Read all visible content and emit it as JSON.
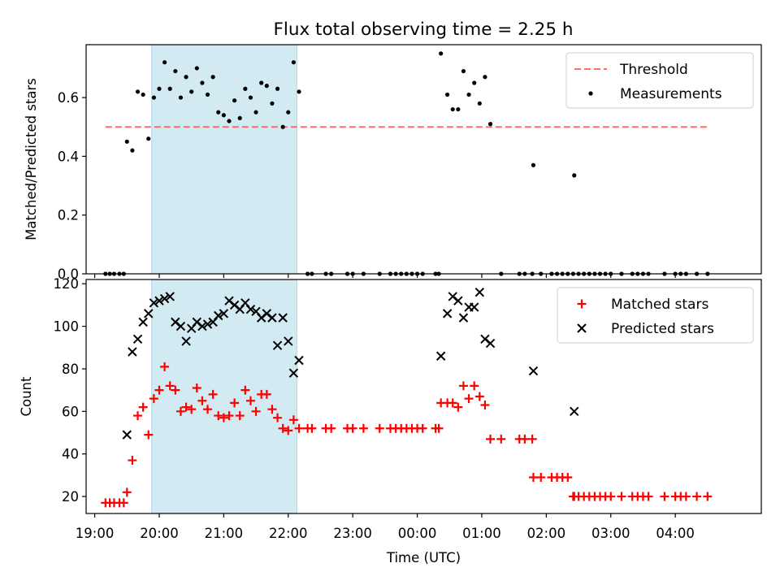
{
  "title": "Flux total observing time = 2.25 h",
  "colors": {
    "shade": "#add8e6",
    "threshold": "#ff6b6b",
    "matched": "#ff0000",
    "predicted": "#000000",
    "measurement": "#000000"
  },
  "chart_data": [
    {
      "type": "scatter",
      "ylabel": "Matched/Predicted stars",
      "ylim": [
        0,
        0.78
      ],
      "yticks": [
        0.0,
        0.2,
        0.4,
        0.6
      ],
      "ytick_labels": [
        "0.0",
        "0.2",
        "0.4",
        "0.6"
      ],
      "xlim": [
        "18:52",
        "05:20"
      ],
      "shaded_span": [
        "19:53",
        "22:08"
      ],
      "legend_position": "top-right",
      "threshold": {
        "name": "Threshold",
        "value": 0.5,
        "x_range": [
          "19:10",
          "04:30"
        ]
      },
      "series": [
        {
          "name": "Measurements",
          "points": [
            [
              "19:10",
              0
            ],
            [
              "19:14",
              0
            ],
            [
              "19:18",
              0
            ],
            [
              "19:23",
              0
            ],
            [
              "19:27",
              0.0
            ],
            [
              "19:30",
              0.45
            ],
            [
              "19:35",
              0.42
            ],
            [
              "19:40",
              0.62
            ],
            [
              "19:45",
              0.61
            ],
            [
              "19:50",
              0.46
            ],
            [
              "19:55",
              0.6
            ],
            [
              "20:00",
              0.63
            ],
            [
              "20:05",
              0.72
            ],
            [
              "20:10",
              0.63
            ],
            [
              "20:15",
              0.69
            ],
            [
              "20:20",
              0.6
            ],
            [
              "20:25",
              0.67
            ],
            [
              "20:30",
              0.62
            ],
            [
              "20:35",
              0.7
            ],
            [
              "20:40",
              0.65
            ],
            [
              "20:45",
              0.61
            ],
            [
              "20:50",
              0.67
            ],
            [
              "20:55",
              0.55
            ],
            [
              "21:00",
              0.54
            ],
            [
              "21:05",
              0.52
            ],
            [
              "21:10",
              0.59
            ],
            [
              "21:15",
              0.53
            ],
            [
              "21:20",
              0.63
            ],
            [
              "21:25",
              0.6
            ],
            [
              "21:30",
              0.55
            ],
            [
              "21:35",
              0.65
            ],
            [
              "21:40",
              0.64
            ],
            [
              "21:45",
              0.58
            ],
            [
              "21:50",
              0.63
            ],
            [
              "21:55",
              0.5
            ],
            [
              "22:00",
              0.55
            ],
            [
              "22:05",
              0.72
            ],
            [
              "22:10",
              0.62
            ],
            [
              "22:18",
              0
            ],
            [
              "22:22",
              0
            ],
            [
              "22:35",
              0
            ],
            [
              "22:40",
              0
            ],
            [
              "22:55",
              0
            ],
            [
              "23:00",
              0
            ],
            [
              "23:10",
              0
            ],
            [
              "23:25",
              0
            ],
            [
              "23:35",
              0
            ],
            [
              "23:40",
              0
            ],
            [
              "23:45",
              0
            ],
            [
              "23:50",
              0
            ],
            [
              "23:55",
              0
            ],
            [
              "00:00",
              0
            ],
            [
              "00:05",
              0
            ],
            [
              "00:17",
              0
            ],
            [
              "00:20",
              0
            ],
            [
              "00:22",
              0.75
            ],
            [
              "00:28",
              0.61
            ],
            [
              "00:33",
              0.56
            ],
            [
              "00:38",
              0.56
            ],
            [
              "00:43",
              0.69
            ],
            [
              "00:48",
              0.61
            ],
            [
              "00:53",
              0.65
            ],
            [
              "00:58",
              0.58
            ],
            [
              "01:03",
              0.67
            ],
            [
              "01:08",
              0.51
            ],
            [
              "01:18",
              0
            ],
            [
              "01:35",
              0
            ],
            [
              "01:40",
              0
            ],
            [
              "01:47",
              0
            ],
            [
              "01:48",
              0.37
            ],
            [
              "01:55",
              0
            ],
            [
              "02:05",
              0
            ],
            [
              "02:10",
              0
            ],
            [
              "02:15",
              0
            ],
            [
              "02:20",
              0
            ],
            [
              "02:25",
              0
            ],
            [
              "02:26",
              0.335
            ],
            [
              "02:30",
              0
            ],
            [
              "02:35",
              0
            ],
            [
              "02:40",
              0
            ],
            [
              "02:45",
              0
            ],
            [
              "02:50",
              0
            ],
            [
              "02:55",
              0
            ],
            [
              "03:00",
              0
            ],
            [
              "03:10",
              0
            ],
            [
              "03:20",
              0
            ],
            [
              "03:25",
              0
            ],
            [
              "03:30",
              0
            ],
            [
              "03:35",
              0
            ],
            [
              "03:50",
              0
            ],
            [
              "04:00",
              0
            ],
            [
              "04:05",
              0
            ],
            [
              "04:10",
              0
            ],
            [
              "04:20",
              0
            ],
            [
              "04:30",
              0
            ]
          ]
        }
      ]
    },
    {
      "type": "scatter",
      "xlabel": "Time (UTC)",
      "ylabel": "Count",
      "ylim": [
        12,
        122
      ],
      "yticks": [
        20,
        40,
        60,
        80,
        100,
        120
      ],
      "ytick_labels": [
        "20",
        "40",
        "60",
        "80",
        "100",
        "120"
      ],
      "xlim": [
        "18:52",
        "05:20"
      ],
      "xticks": [
        "19:00",
        "20:00",
        "21:00",
        "22:00",
        "23:00",
        "00:00",
        "01:00",
        "02:00",
        "03:00",
        "04:00"
      ],
      "shaded_span": [
        "19:53",
        "22:08"
      ],
      "legend_position": "top-right",
      "series": [
        {
          "name": "Matched stars",
          "marker": "plus",
          "points": [
            [
              "19:10",
              17
            ],
            [
              "19:14",
              17
            ],
            [
              "19:18",
              17
            ],
            [
              "19:23",
              17
            ],
            [
              "19:27",
              17
            ],
            [
              "19:30",
              22
            ],
            [
              "19:35",
              37
            ],
            [
              "19:40",
              58
            ],
            [
              "19:45",
              62
            ],
            [
              "19:50",
              49
            ],
            [
              "19:55",
              66
            ],
            [
              "20:00",
              70
            ],
            [
              "20:05",
              81
            ],
            [
              "20:10",
              72
            ],
            [
              "20:15",
              70
            ],
            [
              "20:20",
              60
            ],
            [
              "20:25",
              62
            ],
            [
              "20:30",
              61
            ],
            [
              "20:35",
              71
            ],
            [
              "20:40",
              65
            ],
            [
              "20:45",
              61
            ],
            [
              "20:50",
              68
            ],
            [
              "20:55",
              58
            ],
            [
              "21:00",
              57
            ],
            [
              "21:05",
              58
            ],
            [
              "21:10",
              64
            ],
            [
              "21:15",
              58
            ],
            [
              "21:20",
              70
            ],
            [
              "21:25",
              65
            ],
            [
              "21:30",
              60
            ],
            [
              "21:35",
              68
            ],
            [
              "21:40",
              68
            ],
            [
              "21:45",
              61
            ],
            [
              "21:50",
              57
            ],
            [
              "21:55",
              52
            ],
            [
              "22:00",
              51
            ],
            [
              "22:05",
              56
            ],
            [
              "22:10",
              52
            ],
            [
              "22:18",
              52
            ],
            [
              "22:22",
              52
            ],
            [
              "22:35",
              52
            ],
            [
              "22:40",
              52
            ],
            [
              "22:55",
              52
            ],
            [
              "23:00",
              52
            ],
            [
              "23:10",
              52
            ],
            [
              "23:25",
              52
            ],
            [
              "23:35",
              52
            ],
            [
              "23:40",
              52
            ],
            [
              "23:45",
              52
            ],
            [
              "23:50",
              52
            ],
            [
              "23:55",
              52
            ],
            [
              "00:00",
              52
            ],
            [
              "00:05",
              52
            ],
            [
              "00:17",
              52
            ],
            [
              "00:20",
              52
            ],
            [
              "00:22",
              64
            ],
            [
              "00:28",
              64
            ],
            [
              "00:33",
              64
            ],
            [
              "00:38",
              62
            ],
            [
              "00:43",
              72
            ],
            [
              "00:48",
              66
            ],
            [
              "00:53",
              72
            ],
            [
              "00:58",
              67
            ],
            [
              "01:03",
              63
            ],
            [
              "01:08",
              47
            ],
            [
              "01:18",
              47
            ],
            [
              "01:35",
              47
            ],
            [
              "01:40",
              47
            ],
            [
              "01:47",
              47
            ],
            [
              "01:48",
              29
            ],
            [
              "01:55",
              29
            ],
            [
              "02:05",
              29
            ],
            [
              "02:10",
              29
            ],
            [
              "02:15",
              29
            ],
            [
              "02:20",
              29
            ],
            [
              "02:25",
              20
            ],
            [
              "02:26",
              20
            ],
            [
              "02:30",
              20
            ],
            [
              "02:35",
              20
            ],
            [
              "02:40",
              20
            ],
            [
              "02:45",
              20
            ],
            [
              "02:50",
              20
            ],
            [
              "02:55",
              20
            ],
            [
              "03:00",
              20
            ],
            [
              "03:10",
              20
            ],
            [
              "03:20",
              20
            ],
            [
              "03:25",
              20
            ],
            [
              "03:30",
              20
            ],
            [
              "03:35",
              20
            ],
            [
              "03:50",
              20
            ],
            [
              "04:00",
              20
            ],
            [
              "04:05",
              20
            ],
            [
              "04:10",
              20
            ],
            [
              "04:20",
              20
            ],
            [
              "04:30",
              20
            ]
          ]
        },
        {
          "name": "Predicted stars",
          "marker": "x",
          "points": [
            [
              "19:30",
              49
            ],
            [
              "19:35",
              88
            ],
            [
              "19:40",
              94
            ],
            [
              "19:45",
              102
            ],
            [
              "19:50",
              106
            ],
            [
              "19:55",
              111
            ],
            [
              "20:00",
              112
            ],
            [
              "20:05",
              113
            ],
            [
              "20:10",
              114
            ],
            [
              "20:15",
              102
            ],
            [
              "20:20",
              100
            ],
            [
              "20:25",
              93
            ],
            [
              "20:30",
              99
            ],
            [
              "20:35",
              102
            ],
            [
              "20:40",
              100
            ],
            [
              "20:45",
              101
            ],
            [
              "20:50",
              102
            ],
            [
              "20:55",
              105
            ],
            [
              "21:00",
              106
            ],
            [
              "21:05",
              112
            ],
            [
              "21:10",
              110
            ],
            [
              "21:15",
              108
            ],
            [
              "21:20",
              111
            ],
            [
              "21:25",
              108
            ],
            [
              "21:30",
              107
            ],
            [
              "21:35",
              104
            ],
            [
              "21:40",
              106
            ],
            [
              "21:45",
              104
            ],
            [
              "21:50",
              91
            ],
            [
              "21:55",
              104
            ],
            [
              "22:00",
              93
            ],
            [
              "22:05",
              78
            ],
            [
              "22:10",
              84
            ],
            [
              "00:22",
              86
            ],
            [
              "00:28",
              106
            ],
            [
              "00:33",
              114
            ],
            [
              "00:38",
              112
            ],
            [
              "00:43",
              104
            ],
            [
              "00:48",
              109
            ],
            [
              "00:53",
              109
            ],
            [
              "00:58",
              116
            ],
            [
              "01:03",
              94
            ],
            [
              "01:08",
              92
            ],
            [
              "01:48",
              79
            ],
            [
              "02:26",
              60
            ]
          ]
        }
      ]
    }
  ]
}
